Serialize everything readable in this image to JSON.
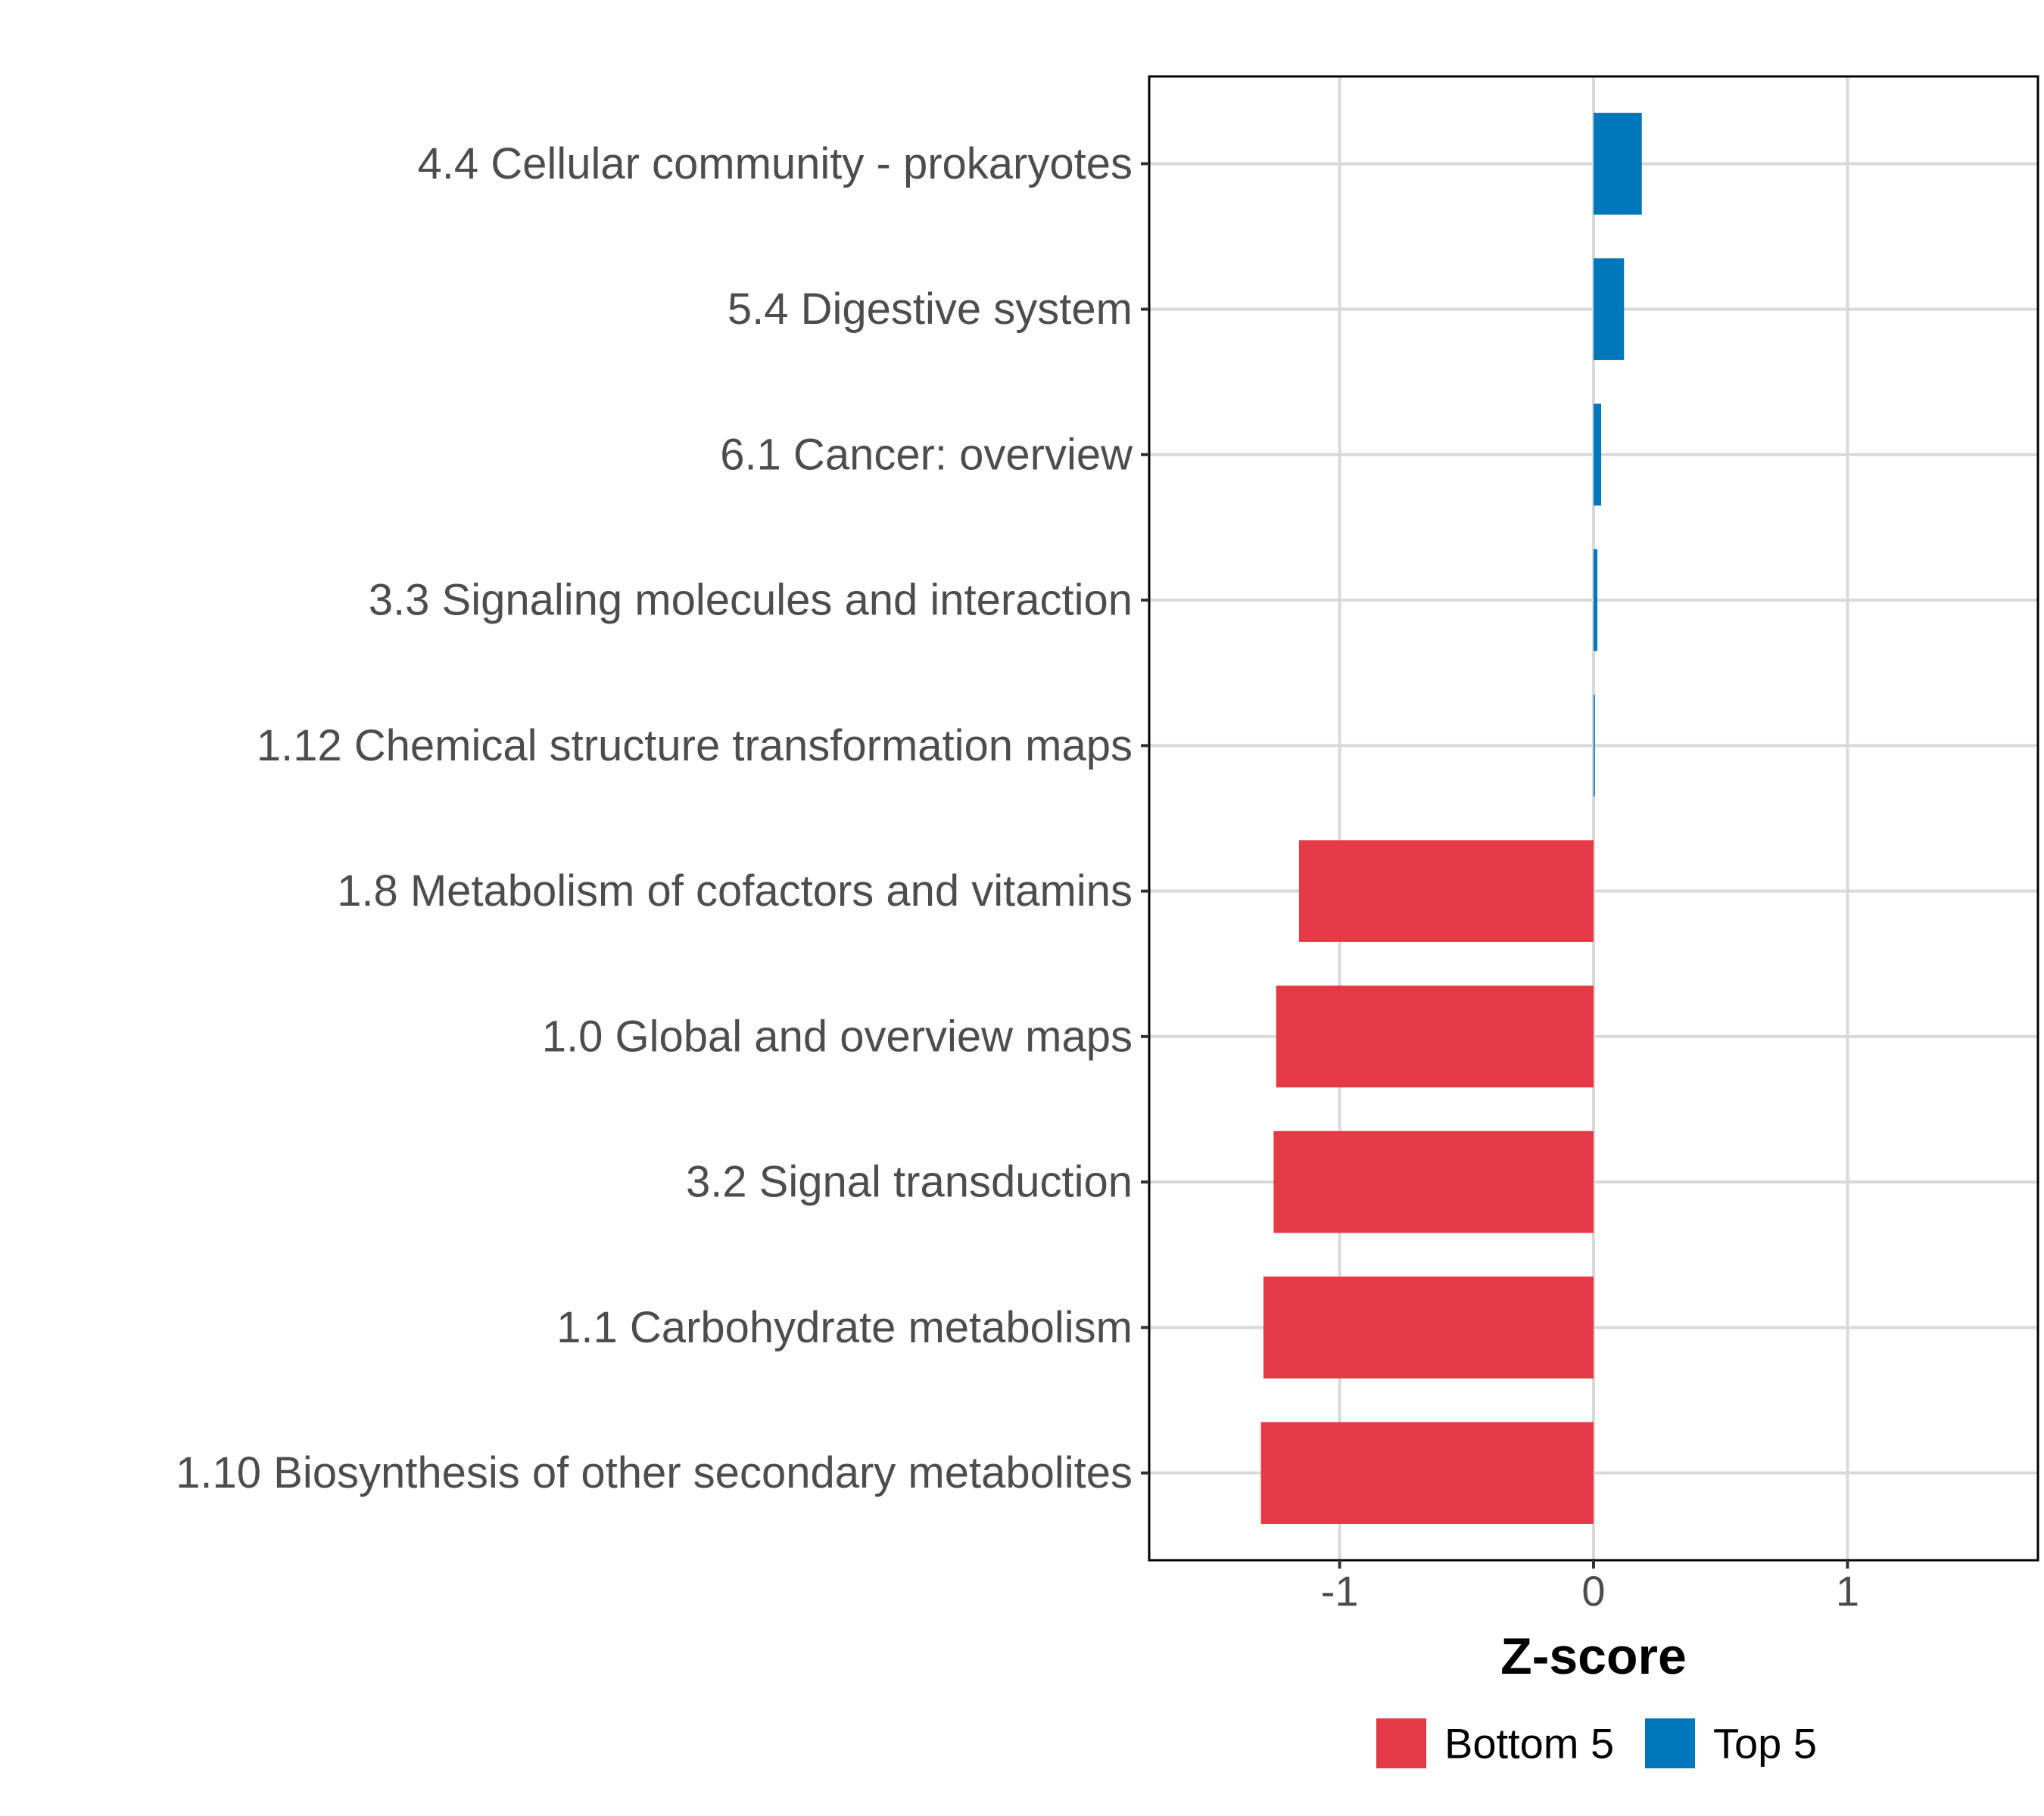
{
  "chart_data": {
    "type": "bar",
    "orientation": "horizontal",
    "title": "",
    "xlabel": "Z-score",
    "ylabel": "",
    "xlim": [
      -1.75,
      1.75
    ],
    "xticks": [
      -1,
      0,
      1
    ],
    "xtick_labels": [
      "-1",
      "0",
      "1"
    ],
    "grid": true,
    "legend_position": "bottom",
    "categories": [
      "4.4 Cellular community - prokaryotes",
      "5.4 Digestive system",
      "6.1 Cancer: overview",
      "3.3 Signaling molecules and interaction",
      "1.12 Chemical structure transformation maps",
      "1.8 Metabolism of cofactors and vitamins",
      "1.0 Global and overview maps",
      "3.2 Signal transduction",
      "1.1 Carbohydrate metabolism",
      "1.10 Biosynthesis of other secondary metabolites"
    ],
    "values": [
      0.19,
      0.12,
      0.03,
      0.015,
      0.005,
      -1.16,
      -1.25,
      -1.26,
      -1.3,
      -1.31
    ],
    "groups": [
      "Top 5",
      "Top 5",
      "Top 5",
      "Top 5",
      "Top 5",
      "Bottom 5",
      "Bottom 5",
      "Bottom 5",
      "Bottom 5",
      "Bottom 5"
    ],
    "legend": [
      {
        "name": "Bottom 5",
        "color": "#e63946"
      },
      {
        "name": "Top 5",
        "color": "#0077bb"
      }
    ]
  }
}
